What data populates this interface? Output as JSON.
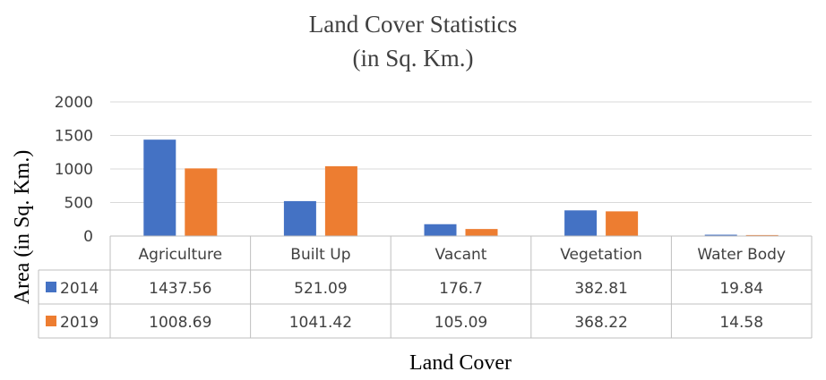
{
  "colors": {
    "2014": "#4472C4",
    "2019": "#ED7D31"
  },
  "chart_data": {
    "type": "bar",
    "title": "Land Cover Statistics",
    "subtitle": "(in Sq. Km.)",
    "xlabel": "Land Cover",
    "ylabel": "Area (in Sq. Km.)",
    "ylim": [
      0,
      2000
    ],
    "yticks": [
      "0",
      "500",
      "1000",
      "1500",
      "2000"
    ],
    "grid": true,
    "legend": "data-table",
    "categories": [
      "Agriculture",
      "Built Up",
      "Vacant",
      "Vegetation",
      "Water Body"
    ],
    "series": [
      {
        "name": "2014",
        "values": [
          1437.56,
          521.09,
          176.7,
          382.81,
          19.84
        ],
        "labels": [
          "1437.56",
          "521.09",
          "176.7",
          "382.81",
          "19.84"
        ]
      },
      {
        "name": "2019",
        "values": [
          1008.69,
          1041.42,
          105.09,
          368.22,
          14.58
        ],
        "labels": [
          "1008.69",
          "1041.42",
          "105.09",
          "368.22",
          "14.58"
        ]
      }
    ]
  }
}
